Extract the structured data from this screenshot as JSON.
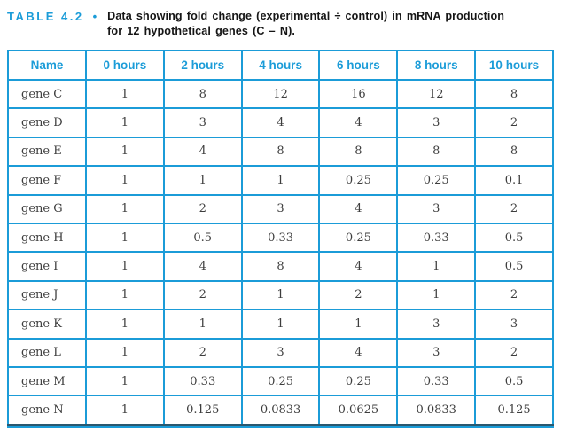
{
  "colors": {
    "accent": "#1b9cd8",
    "rule_dark": "#2a586f",
    "ink": "#3d3d3d"
  },
  "caption": {
    "label": "TABLE 4.2",
    "bullet": "•",
    "line1": "Data showing fold change (experimental ÷ control) in mRNA production",
    "line2": "for 12 hypothetical genes (C – N)."
  },
  "table": {
    "columns": [
      "Name",
      "0 hours",
      "2 hours",
      "4 hours",
      "6 hours",
      "8 hours",
      "10 hours"
    ],
    "rows": [
      {
        "name": "gene C",
        "values": [
          "1",
          "8",
          "12",
          "16",
          "12",
          "8"
        ]
      },
      {
        "name": "gene D",
        "values": [
          "1",
          "3",
          "4",
          "4",
          "3",
          "2"
        ]
      },
      {
        "name": "gene E",
        "values": [
          "1",
          "4",
          "8",
          "8",
          "8",
          "8"
        ]
      },
      {
        "name": "gene F",
        "values": [
          "1",
          "1",
          "1",
          "0.25",
          "0.25",
          "0.1"
        ]
      },
      {
        "name": "gene G",
        "values": [
          "1",
          "2",
          "3",
          "4",
          "3",
          "2"
        ]
      },
      {
        "name": "gene H",
        "values": [
          "1",
          "0.5",
          "0.33",
          "0.25",
          "0.33",
          "0.5"
        ]
      },
      {
        "name": "gene I",
        "values": [
          "1",
          "4",
          "8",
          "4",
          "1",
          "0.5"
        ]
      },
      {
        "name": "gene J",
        "values": [
          "1",
          "2",
          "1",
          "2",
          "1",
          "2"
        ]
      },
      {
        "name": "gene K",
        "values": [
          "1",
          "1",
          "1",
          "1",
          "3",
          "3"
        ]
      },
      {
        "name": "gene L",
        "values": [
          "1",
          "2",
          "3",
          "4",
          "3",
          "2"
        ]
      },
      {
        "name": "gene M",
        "values": [
          "1",
          "0.33",
          "0.25",
          "0.25",
          "0.33",
          "0.5"
        ]
      },
      {
        "name": "gene N",
        "values": [
          "1",
          "0.125",
          "0.0833",
          "0.0625",
          "0.0833",
          "0.125"
        ]
      }
    ]
  },
  "chart_data": {
    "type": "table",
    "title": "Data showing fold change (experimental ÷ control) in mRNA production for 12 hypothetical genes (C – N).",
    "columns": [
      "Name",
      "0 hours",
      "2 hours",
      "4 hours",
      "6 hours",
      "8 hours",
      "10 hours"
    ],
    "rows": [
      {
        "name": "gene C",
        "values": [
          1,
          8,
          12,
          16,
          12,
          8
        ]
      },
      {
        "name": "gene D",
        "values": [
          1,
          3,
          4,
          4,
          3,
          2
        ]
      },
      {
        "name": "gene E",
        "values": [
          1,
          4,
          8,
          8,
          8,
          8
        ]
      },
      {
        "name": "gene F",
        "values": [
          1,
          1,
          1,
          0.25,
          0.25,
          0.1
        ]
      },
      {
        "name": "gene G",
        "values": [
          1,
          2,
          3,
          4,
          3,
          2
        ]
      },
      {
        "name": "gene H",
        "values": [
          1,
          0.5,
          0.33,
          0.25,
          0.33,
          0.5
        ]
      },
      {
        "name": "gene I",
        "values": [
          1,
          4,
          8,
          4,
          1,
          0.5
        ]
      },
      {
        "name": "gene J",
        "values": [
          1,
          2,
          1,
          2,
          1,
          2
        ]
      },
      {
        "name": "gene K",
        "values": [
          1,
          1,
          1,
          1,
          3,
          3
        ]
      },
      {
        "name": "gene L",
        "values": [
          1,
          2,
          3,
          4,
          3,
          2
        ]
      },
      {
        "name": "gene M",
        "values": [
          1,
          0.33,
          0.25,
          0.25,
          0.33,
          0.5
        ]
      },
      {
        "name": "gene N",
        "values": [
          1,
          0.125,
          0.0833,
          0.0625,
          0.0833,
          0.125
        ]
      }
    ]
  }
}
